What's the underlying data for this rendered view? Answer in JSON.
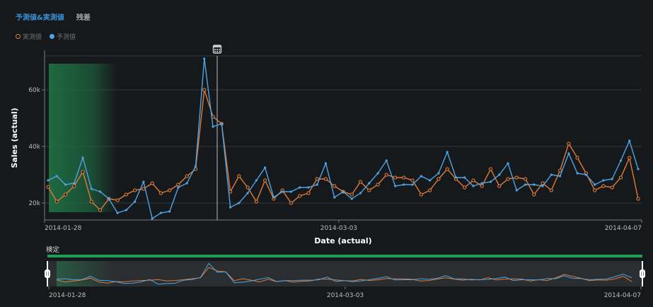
{
  "tabs": [
    {
      "label": "予測値&実測値",
      "active": true
    },
    {
      "label": "残差",
      "active": false
    }
  ],
  "legend": [
    {
      "name": "実測値",
      "color": "#e07b39"
    },
    {
      "name": "予測値",
      "color": "#4fa3e3"
    }
  ],
  "colors": {
    "actual": "#e07b39",
    "predicted": "#4fa3e3",
    "shade": "#1e6e43",
    "grid": "#33373b",
    "brush": "#1f9d55"
  },
  "icons": {
    "marker": "calendar-icon"
  },
  "main_chart": {
    "xlabel": "Date (actual)",
    "ylabel": "Sales (actual)",
    "x_ticks": [
      "2014-01-28",
      "2014-03-03",
      "2014-04-07"
    ],
    "y_ticks": [
      "20k",
      "40k",
      "60k"
    ]
  },
  "overview": {
    "title": "検定",
    "x_ticks": [
      "2014-01-28",
      "2014-03-03",
      "2014-04-07"
    ]
  },
  "chart_data": {
    "type": "line",
    "xlabel": "Date (actual)",
    "ylabel": "Sales (actual)",
    "x_range": [
      "2014-01-28",
      "2014-04-07"
    ],
    "ylim": [
      14000,
      72000
    ],
    "grid": true,
    "legend_position": "top-left",
    "highlight_range": [
      "2014-01-28",
      "2014-02-05"
    ],
    "marker_date": "2014-02-20",
    "series": [
      {
        "name": "実測値",
        "values": [
          25700,
          20500,
          23000,
          26000,
          31000,
          20500,
          17500,
          21500,
          21000,
          23000,
          24500,
          25000,
          27000,
          23500,
          24500,
          26500,
          29500,
          32000,
          60000,
          50500,
          48000,
          24000,
          29500,
          25500,
          20500,
          28000,
          21500,
          24500,
          20000,
          22500,
          23500,
          28500,
          28500,
          26000,
          24000,
          23000,
          27500,
          24500,
          26500,
          30000,
          29000,
          29000,
          28000,
          23000,
          24500,
          28500,
          32000,
          28500,
          25500,
          28000,
          26000,
          32000,
          26000,
          28500,
          29000,
          28500,
          23000,
          27000,
          24500,
          31500,
          41000,
          36000,
          30500,
          24500,
          26000,
          25500,
          29000,
          36000,
          21500
        ]
      },
      {
        "name": "予測値",
        "values": [
          28000,
          29500,
          26500,
          27000,
          36000,
          25000,
          24000,
          21500,
          16500,
          17500,
          20500,
          27500,
          14500,
          16500,
          17000,
          25500,
          27000,
          33000,
          71000,
          47000,
          48000,
          18500,
          20000,
          23500,
          28000,
          32500,
          22000,
          24000,
          24000,
          25500,
          25500,
          26500,
          34000,
          22000,
          24000,
          21500,
          23500,
          27000,
          30500,
          35000,
          26000,
          26500,
          26500,
          29500,
          28000,
          30500,
          38000,
          29000,
          29000,
          26000,
          27000,
          27500,
          30000,
          34000,
          24500,
          26500,
          26500,
          26000,
          30000,
          29500,
          37500,
          30500,
          30000,
          26500,
          28000,
          28500,
          35000,
          42000,
          32000
        ]
      }
    ]
  }
}
